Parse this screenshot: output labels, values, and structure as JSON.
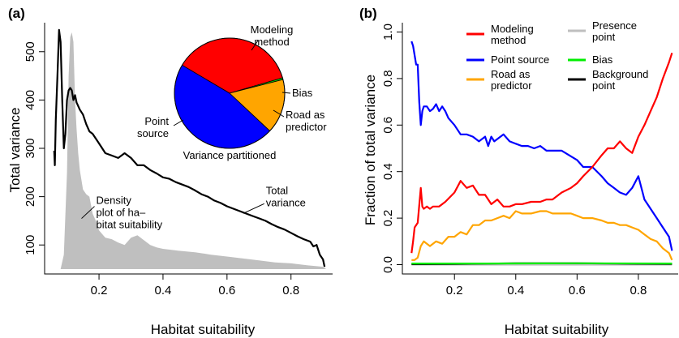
{
  "chart_data": [
    {
      "panel_label": "(a)",
      "type": "line",
      "xlabel": "Habitat suitability",
      "ylabel": "Total variance",
      "xlim": [
        0.03,
        0.93
      ],
      "ylim": [
        40,
        560
      ],
      "xticks": [
        0.2,
        0.4,
        0.6,
        0.8
      ],
      "yticks": [
        100,
        200,
        300,
        400,
        500
      ],
      "grid": false,
      "series": [
        {
          "name": "Total variance",
          "color": "#000000",
          "x": [
            0.06,
            0.062,
            0.065,
            0.07,
            0.075,
            0.08,
            0.085,
            0.09,
            0.095,
            0.1,
            0.105,
            0.11,
            0.115,
            0.12,
            0.125,
            0.13,
            0.14,
            0.15,
            0.16,
            0.17,
            0.18,
            0.2,
            0.22,
            0.24,
            0.26,
            0.28,
            0.3,
            0.32,
            0.34,
            0.36,
            0.38,
            0.4,
            0.42,
            0.44,
            0.46,
            0.48,
            0.5,
            0.52,
            0.54,
            0.56,
            0.58,
            0.6,
            0.62,
            0.64,
            0.66,
            0.68,
            0.7,
            0.72,
            0.74,
            0.76,
            0.78,
            0.8,
            0.82,
            0.84,
            0.86,
            0.87,
            0.88,
            0.89,
            0.9,
            0.905
          ],
          "y": [
            295,
            265,
            360,
            450,
            545,
            520,
            400,
            300,
            330,
            400,
            420,
            425,
            420,
            400,
            410,
            395,
            380,
            370,
            350,
            335,
            330,
            310,
            290,
            285,
            280,
            290,
            280,
            265,
            265,
            255,
            248,
            240,
            237,
            230,
            225,
            220,
            213,
            205,
            200,
            192,
            187,
            180,
            175,
            170,
            165,
            160,
            155,
            150,
            143,
            137,
            132,
            125,
            118,
            112,
            107,
            97,
            100,
            80,
            70,
            55
          ]
        }
      ],
      "density": {
        "name": "Density plot of habitat suitability",
        "color": "#bfbfbf",
        "x": [
          0.05,
          0.08,
          0.09,
          0.1,
          0.105,
          0.11,
          0.115,
          0.12,
          0.125,
          0.13,
          0.135,
          0.14,
          0.15,
          0.16,
          0.17,
          0.18,
          0.19,
          0.2,
          0.22,
          0.24,
          0.26,
          0.28,
          0.3,
          0.32,
          0.34,
          0.36,
          0.38,
          0.4,
          0.45,
          0.5,
          0.55,
          0.6,
          0.65,
          0.7,
          0.75,
          0.8,
          0.85,
          0.9,
          0.91
        ],
        "y": [
          50,
          50,
          80,
          250,
          450,
          530,
          540,
          520,
          400,
          340,
          290,
          255,
          215,
          205,
          200,
          165,
          150,
          130,
          115,
          112,
          105,
          100,
          115,
          120,
          110,
          100,
          95,
          92,
          88,
          85,
          80,
          76,
          72,
          68,
          64,
          62,
          58,
          55,
          50
        ]
      },
      "annotations": [
        {
          "lines": [
            "Density",
            "plot of ha–",
            "bitat suitability"
          ],
          "x": 0.12,
          "y": 185
        },
        {
          "lines": [
            "Total",
            "variance"
          ],
          "x": 0.62,
          "y": 172
        }
      ],
      "pie": {
        "title": "Variance partitioned",
        "slices": [
          {
            "label_lines": [
              "Modeling",
              "method"
            ],
            "value": 0.37,
            "color": "#ff0000"
          },
          {
            "label_lines": [
              "Bias"
            ],
            "value": 0.005,
            "color": "#00cc00"
          },
          {
            "label_lines": [
              "Road as",
              "predictor"
            ],
            "value": 0.16,
            "color": "#ffa500"
          },
          {
            "label_lines": [
              "Point",
              "source"
            ],
            "value": 0.465,
            "color": "#0000ff"
          }
        ]
      }
    },
    {
      "panel_label": "(b)",
      "type": "line",
      "xlabel": "Habitat suitability",
      "ylabel": "Fraction of total variance",
      "xlim": [
        0.03,
        0.93
      ],
      "ylim": [
        -0.04,
        1.04
      ],
      "xticks": [
        0.2,
        0.4,
        0.6,
        0.8
      ],
      "yticks": [
        0.0,
        0.2,
        0.4,
        0.6,
        0.8,
        1.0
      ],
      "grid": false,
      "legend": [
        {
          "label_lines": [
            "Modeling",
            "method"
          ],
          "color": "#ff0000"
        },
        {
          "label_lines": [
            "Point source"
          ],
          "color": "#0000ff"
        },
        {
          "label_lines": [
            "Road as",
            "predictor"
          ],
          "color": "#ffa500"
        },
        {
          "label_lines": [
            "Presence",
            "point"
          ],
          "color": "#bfbfbf"
        },
        {
          "label_lines": [
            "Bias"
          ],
          "color": "#00ee00"
        },
        {
          "label_lines": [
            "Background",
            "point"
          ],
          "color": "#000000"
        }
      ],
      "series": [
        {
          "name": "Modeling method",
          "color": "#ff0000",
          "x": [
            0.06,
            0.065,
            0.07,
            0.08,
            0.09,
            0.095,
            0.1,
            0.11,
            0.12,
            0.13,
            0.15,
            0.17,
            0.2,
            0.22,
            0.24,
            0.26,
            0.28,
            0.3,
            0.32,
            0.34,
            0.36,
            0.38,
            0.4,
            0.42,
            0.45,
            0.48,
            0.5,
            0.52,
            0.55,
            0.58,
            0.6,
            0.62,
            0.65,
            0.68,
            0.7,
            0.72,
            0.74,
            0.76,
            0.78,
            0.8,
            0.82,
            0.84,
            0.86,
            0.88,
            0.9,
            0.91
          ],
          "y": [
            0.05,
            0.1,
            0.16,
            0.18,
            0.33,
            0.25,
            0.24,
            0.25,
            0.24,
            0.25,
            0.25,
            0.27,
            0.31,
            0.36,
            0.33,
            0.34,
            0.3,
            0.3,
            0.26,
            0.28,
            0.25,
            0.25,
            0.26,
            0.26,
            0.27,
            0.27,
            0.28,
            0.28,
            0.31,
            0.33,
            0.35,
            0.38,
            0.42,
            0.47,
            0.5,
            0.5,
            0.53,
            0.5,
            0.48,
            0.55,
            0.6,
            0.66,
            0.72,
            0.8,
            0.87,
            0.91
          ]
        },
        {
          "name": "Point source",
          "color": "#0000ff",
          "x": [
            0.06,
            0.065,
            0.07,
            0.075,
            0.08,
            0.085,
            0.09,
            0.095,
            0.1,
            0.11,
            0.12,
            0.13,
            0.14,
            0.15,
            0.16,
            0.17,
            0.18,
            0.2,
            0.22,
            0.24,
            0.26,
            0.28,
            0.3,
            0.31,
            0.32,
            0.33,
            0.34,
            0.36,
            0.38,
            0.4,
            0.42,
            0.44,
            0.46,
            0.48,
            0.5,
            0.55,
            0.6,
            0.62,
            0.65,
            0.68,
            0.7,
            0.72,
            0.74,
            0.76,
            0.78,
            0.8,
            0.82,
            0.84,
            0.86,
            0.88,
            0.9,
            0.91
          ],
          "y": [
            0.96,
            0.94,
            0.9,
            0.86,
            0.86,
            0.7,
            0.6,
            0.66,
            0.68,
            0.68,
            0.66,
            0.67,
            0.69,
            0.66,
            0.68,
            0.66,
            0.63,
            0.6,
            0.56,
            0.56,
            0.55,
            0.53,
            0.55,
            0.51,
            0.55,
            0.53,
            0.54,
            0.56,
            0.53,
            0.52,
            0.51,
            0.51,
            0.5,
            0.51,
            0.49,
            0.49,
            0.45,
            0.42,
            0.42,
            0.38,
            0.35,
            0.33,
            0.31,
            0.3,
            0.33,
            0.38,
            0.28,
            0.24,
            0.2,
            0.16,
            0.12,
            0.06
          ]
        },
        {
          "name": "Road as predictor",
          "color": "#ffa500",
          "x": [
            0.06,
            0.07,
            0.08,
            0.09,
            0.1,
            0.11,
            0.12,
            0.14,
            0.16,
            0.18,
            0.2,
            0.22,
            0.24,
            0.26,
            0.28,
            0.3,
            0.32,
            0.34,
            0.36,
            0.38,
            0.4,
            0.42,
            0.45,
            0.48,
            0.5,
            0.52,
            0.55,
            0.58,
            0.6,
            0.62,
            0.65,
            0.68,
            0.7,
            0.72,
            0.74,
            0.76,
            0.78,
            0.8,
            0.82,
            0.84,
            0.86,
            0.88,
            0.9,
            0.91
          ],
          "y": [
            0.02,
            0.02,
            0.03,
            0.08,
            0.1,
            0.09,
            0.08,
            0.1,
            0.09,
            0.12,
            0.12,
            0.14,
            0.13,
            0.17,
            0.17,
            0.19,
            0.19,
            0.2,
            0.21,
            0.2,
            0.23,
            0.22,
            0.22,
            0.23,
            0.23,
            0.22,
            0.22,
            0.22,
            0.21,
            0.2,
            0.2,
            0.19,
            0.18,
            0.18,
            0.17,
            0.17,
            0.16,
            0.15,
            0.13,
            0.11,
            0.1,
            0.07,
            0.05,
            0.02
          ]
        },
        {
          "name": "Presence point",
          "color": "#bfbfbf",
          "x": [
            0.06,
            0.3,
            0.6,
            0.91
          ],
          "y": [
            0.0,
            0.0,
            0.0,
            0.0
          ]
        },
        {
          "name": "Bias",
          "color": "#00ee00",
          "x": [
            0.06,
            0.3,
            0.6,
            0.91
          ],
          "y": [
            0.005,
            0.005,
            0.006,
            0.005
          ]
        },
        {
          "name": "Background point",
          "color": "#000000",
          "x": [
            0.06,
            0.2,
            0.4,
            0.6,
            0.8,
            0.91
          ],
          "y": [
            0.002,
            0.003,
            0.006,
            0.006,
            0.004,
            0.003
          ]
        }
      ]
    }
  ]
}
